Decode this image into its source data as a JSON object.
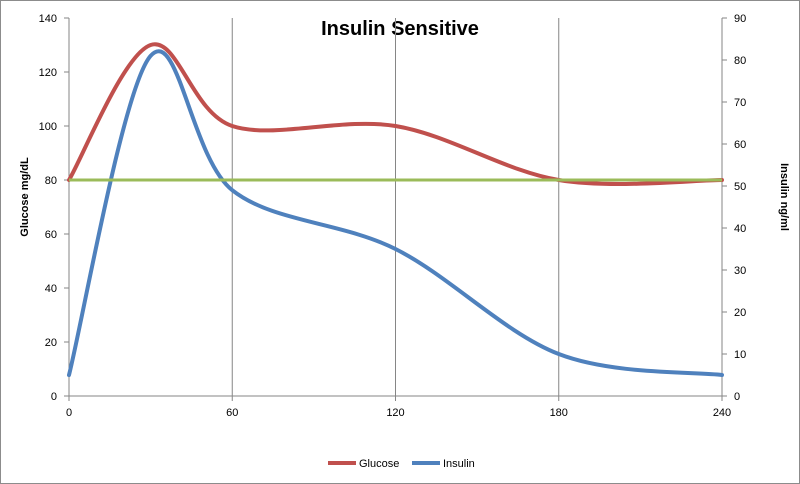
{
  "chart_data": {
    "type": "line",
    "title": "Insulin Sensitive",
    "xlabel": "",
    "ylabel": "Glucose  mg/dL",
    "y2label": "Insulin ng/ml",
    "xlim": [
      0,
      240
    ],
    "ylim": [
      0,
      140
    ],
    "y2lim": [
      0,
      90
    ],
    "xticks": [
      0,
      60,
      120,
      180,
      240
    ],
    "yticks": [
      0,
      20,
      40,
      60,
      80,
      100,
      120,
      140
    ],
    "y2ticks": [
      0,
      10,
      20,
      30,
      40,
      50,
      60,
      70,
      80,
      90
    ],
    "grid": "vertical lines at x ticks",
    "legend": "bottom",
    "reference_line": {
      "y": 80,
      "color": "#9bbb59"
    },
    "series": [
      {
        "name": "Glucose",
        "axis": "left",
        "color": "#c0504d",
        "x": [
          0,
          30,
          60,
          120,
          180,
          240
        ],
        "values": [
          80,
          130,
          100,
          100,
          80,
          80
        ]
      },
      {
        "name": "Insulin",
        "axis": "right",
        "color": "#4f81bd",
        "x": [
          0,
          30,
          60,
          120,
          180,
          240
        ],
        "values": [
          5,
          81,
          49,
          35,
          10,
          5
        ]
      }
    ]
  }
}
